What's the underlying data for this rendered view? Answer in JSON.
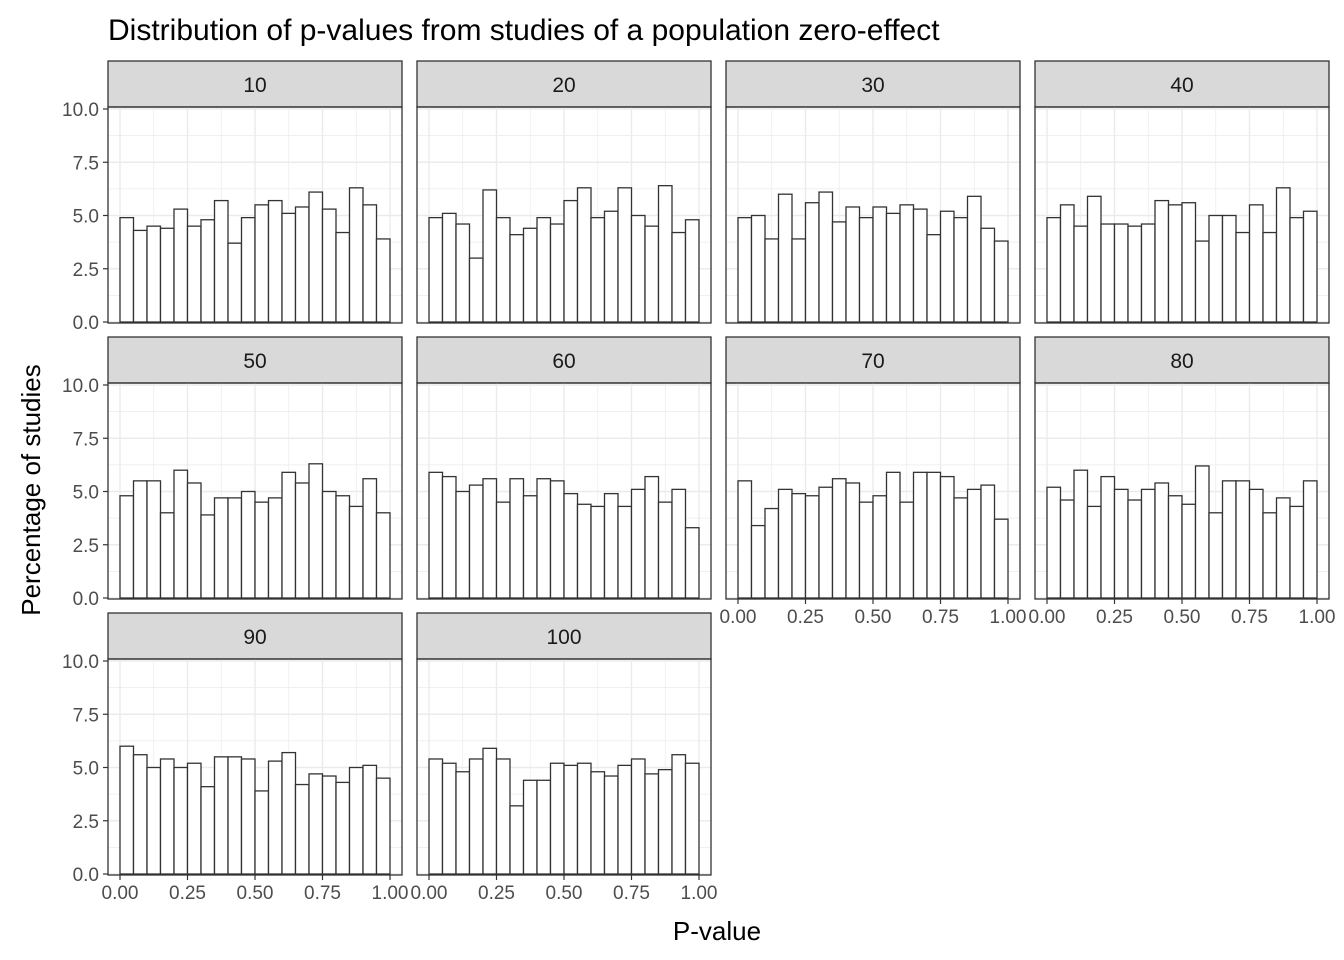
{
  "chart_data": {
    "type": "bar",
    "title": "Distribution of p-values from studies of a population zero-effect",
    "xlabel": "P-value",
    "ylabel": "Percentage of studies",
    "xlim": [
      0,
      1
    ],
    "ylim": [
      0,
      10
    ],
    "x_ticks": [
      "0.00",
      "0.25",
      "0.50",
      "0.75",
      "1.00"
    ],
    "y_ticks": [
      "0.0",
      "2.5",
      "5.0",
      "7.5",
      "10.0"
    ],
    "bins": 20,
    "bin_width": 0.05,
    "grid": true,
    "colors": {
      "bar_fill": "#ffffff",
      "bar_stroke": "#333333",
      "strip_fill": "#d9d9d9",
      "grid": "#ebebeb",
      "panel_border": "#333333"
    },
    "panels": [
      {
        "label": "10",
        "values": [
          4.9,
          4.3,
          4.5,
          4.4,
          5.3,
          4.5,
          4.8,
          5.7,
          3.7,
          4.9,
          5.5,
          5.7,
          5.1,
          5.4,
          6.1,
          5.3,
          4.2,
          6.3,
          5.5,
          3.9
        ]
      },
      {
        "label": "20",
        "values": [
          4.9,
          5.1,
          4.6,
          3.0,
          6.2,
          4.9,
          4.1,
          4.4,
          4.9,
          4.6,
          5.7,
          6.3,
          4.9,
          5.2,
          6.3,
          5.0,
          4.5,
          6.4,
          4.2,
          4.8
        ]
      },
      {
        "label": "30",
        "values": [
          4.9,
          5.0,
          3.9,
          6.0,
          3.9,
          5.6,
          6.1,
          4.7,
          5.4,
          4.9,
          5.4,
          5.1,
          5.5,
          5.3,
          4.1,
          5.2,
          4.9,
          5.9,
          4.4,
          3.8
        ]
      },
      {
        "label": "40",
        "values": [
          4.9,
          5.5,
          4.5,
          5.9,
          4.6,
          4.6,
          4.5,
          4.6,
          5.7,
          5.5,
          5.6,
          3.8,
          5.0,
          5.0,
          4.2,
          5.5,
          4.2,
          6.3,
          4.9,
          5.2
        ]
      },
      {
        "label": "50",
        "values": [
          4.8,
          5.5,
          5.5,
          4.0,
          6.0,
          5.4,
          3.9,
          4.7,
          4.7,
          5.0,
          4.5,
          4.7,
          5.9,
          5.4,
          6.3,
          5.0,
          4.8,
          4.3,
          5.6,
          4.0
        ]
      },
      {
        "label": "60",
        "values": [
          5.9,
          5.7,
          5.0,
          5.3,
          5.6,
          4.5,
          5.6,
          4.8,
          5.6,
          5.5,
          4.9,
          4.4,
          4.3,
          4.9,
          4.3,
          5.1,
          5.7,
          4.5,
          5.1,
          3.3
        ]
      },
      {
        "label": "70",
        "values": [
          5.5,
          3.4,
          4.2,
          5.1,
          4.9,
          4.8,
          5.2,
          5.6,
          5.4,
          4.5,
          4.8,
          5.9,
          4.5,
          5.9,
          5.9,
          5.7,
          4.7,
          5.1,
          5.3,
          3.7
        ]
      },
      {
        "label": "80",
        "values": [
          5.2,
          4.6,
          6.0,
          4.3,
          5.7,
          5.1,
          4.6,
          5.1,
          5.4,
          4.8,
          4.4,
          6.2,
          4.0,
          5.5,
          5.5,
          5.1,
          4.0,
          4.7,
          4.3,
          5.5
        ]
      },
      {
        "label": "90",
        "values": [
          6.0,
          5.6,
          5.0,
          5.4,
          5.0,
          5.2,
          4.1,
          5.5,
          5.5,
          5.4,
          3.9,
          5.3,
          5.7,
          4.2,
          4.7,
          4.6,
          4.3,
          5.0,
          5.1,
          4.5
        ]
      },
      {
        "label": "100",
        "values": [
          5.4,
          5.2,
          4.8,
          5.4,
          5.9,
          5.4,
          3.2,
          4.4,
          4.4,
          5.2,
          5.1,
          5.2,
          4.8,
          4.6,
          5.1,
          5.4,
          4.7,
          4.9,
          5.6,
          5.2
        ]
      }
    ]
  }
}
